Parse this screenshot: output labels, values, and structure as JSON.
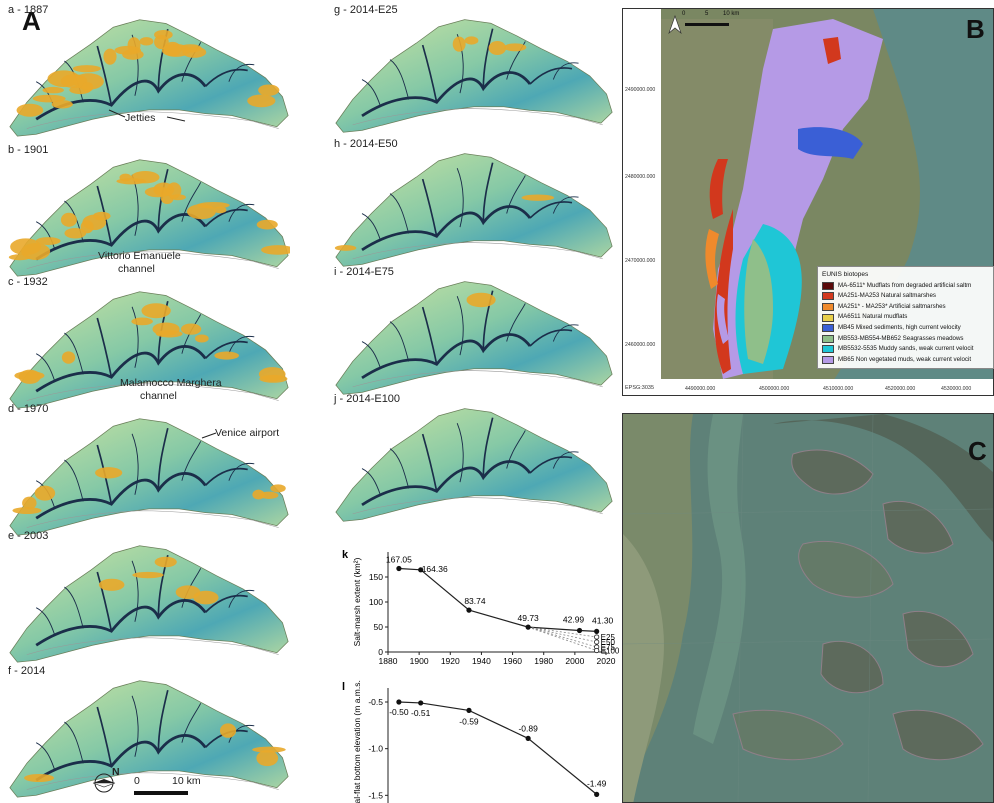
{
  "panels": {
    "a": "A",
    "b": "B",
    "c": "C"
  },
  "maps_left": [
    {
      "label": "a - 1887",
      "salt": 0.9
    },
    {
      "label": "b - 1901",
      "salt": 0.85
    },
    {
      "label": "c - 1932",
      "salt": 0.45
    },
    {
      "label": "d - 1970",
      "salt": 0.25
    },
    {
      "label": "e - 2003",
      "salt": 0.18
    },
    {
      "label": "f - 2014",
      "salt": 0.15
    }
  ],
  "maps_right": [
    {
      "label": "g - 2014-E25",
      "salt": 0.15
    },
    {
      "label": "h - 2014-E50",
      "salt": 0.08
    },
    {
      "label": "i - 2014-E75",
      "salt": 0.03
    },
    {
      "label": "j - 2014-E100",
      "salt": 0.01
    }
  ],
  "annotations": {
    "jetties": "Jetties",
    "vittorio_line1": "Vittorio Emanuele",
    "vittorio_line2": "channel",
    "malamocco_line1": "Malamocco Marghera",
    "malamocco_line2": "channel",
    "venice_airport": "Venice airport",
    "north": "N",
    "scale_zero": "0",
    "scale_ten": "10 km"
  },
  "colors": {
    "saltmarsh": "#e9a92a",
    "tidalflat_light": "#c6dfa0",
    "tidalflat_mid": "#6fbfa7",
    "deep": "#2e8fb0",
    "channel": "#1b2e4a"
  },
  "map_B": {
    "scale_zero": "0",
    "scale_five": "5",
    "scale_ten": "10 km",
    "y_ticks": [
      "2490000.000",
      "2480000.000",
      "2470000.000",
      "2460000.000"
    ],
    "x_ticks": [
      "4490000.000",
      "4500000.000",
      "4510000.000",
      "4520000.000",
      "4530000.000"
    ],
    "crs": "EPSG:3035",
    "legend_title": "EUNIS biotopes",
    "legend": [
      {
        "label": "MA-6511* Mudflats from degraded artificial saltm",
        "color": "#5a0a0a"
      },
      {
        "label": "MA251-MA253 Natural saltmarshes",
        "color": "#d2381d"
      },
      {
        "label": "MA251* - MA253* Artificial saltmarshes",
        "color": "#ef8a2c"
      },
      {
        "label": "MA6511 Natural mudflats",
        "color": "#e8cf4a"
      },
      {
        "label": "MB45 Mixed sediments, high current velocity",
        "color": "#3a5fd6"
      },
      {
        "label": "MB553-MB554-MB652 Seagrasses meadows",
        "color": "#8fbf8a"
      },
      {
        "label": "MB5532-5535 Muddy sands, weak current velocit",
        "color": "#1fc6d6"
      },
      {
        "label": "MB65 Non vegetated muds, weak current velocit",
        "color": "#b59ae6"
      }
    ]
  },
  "chart_data": [
    {
      "type": "line",
      "panel": "k",
      "ylabel": "Salt-marsh extent (km²)",
      "x": [
        1887,
        1901,
        1932,
        1970,
        2003,
        2014
      ],
      "values": [
        167.05,
        164.36,
        83.74,
        49.73,
        42.99,
        41.3
      ],
      "data_labels": [
        "167.05",
        "164.36",
        "83.74",
        "49.73",
        "42.99",
        "41.30"
      ],
      "scenario_labels": [
        "E25",
        "E50",
        "E75",
        "E100"
      ],
      "scenario_values": [
        30,
        20,
        10,
        3
      ],
      "xlim": [
        1880,
        2020
      ],
      "ylim": [
        0,
        200
      ],
      "x_ticks": [
        "1880",
        "1900",
        "1920",
        "1940",
        "1960",
        "1980",
        "2000",
        "2020"
      ],
      "y_ticks": [
        "0",
        "50",
        "100",
        "150"
      ]
    },
    {
      "type": "line",
      "panel": "l",
      "ylabel": "Tidal-flat bottom elevation (m a.m.s.l.)",
      "x": [
        1887,
        1901,
        1932,
        1970,
        2014
      ],
      "values": [
        -0.5,
        -0.51,
        -0.59,
        -0.89,
        -1.49
      ],
      "data_labels": [
        "-0.50",
        "-0.51",
        "-0.59",
        "-0.89",
        "-1.49"
      ],
      "xlim": [
        1880,
        2020
      ],
      "ylim": [
        -1.55,
        -0.35
      ],
      "y_ticks": [
        "-0.5",
        "-1.0",
        "-1.5"
      ]
    }
  ]
}
